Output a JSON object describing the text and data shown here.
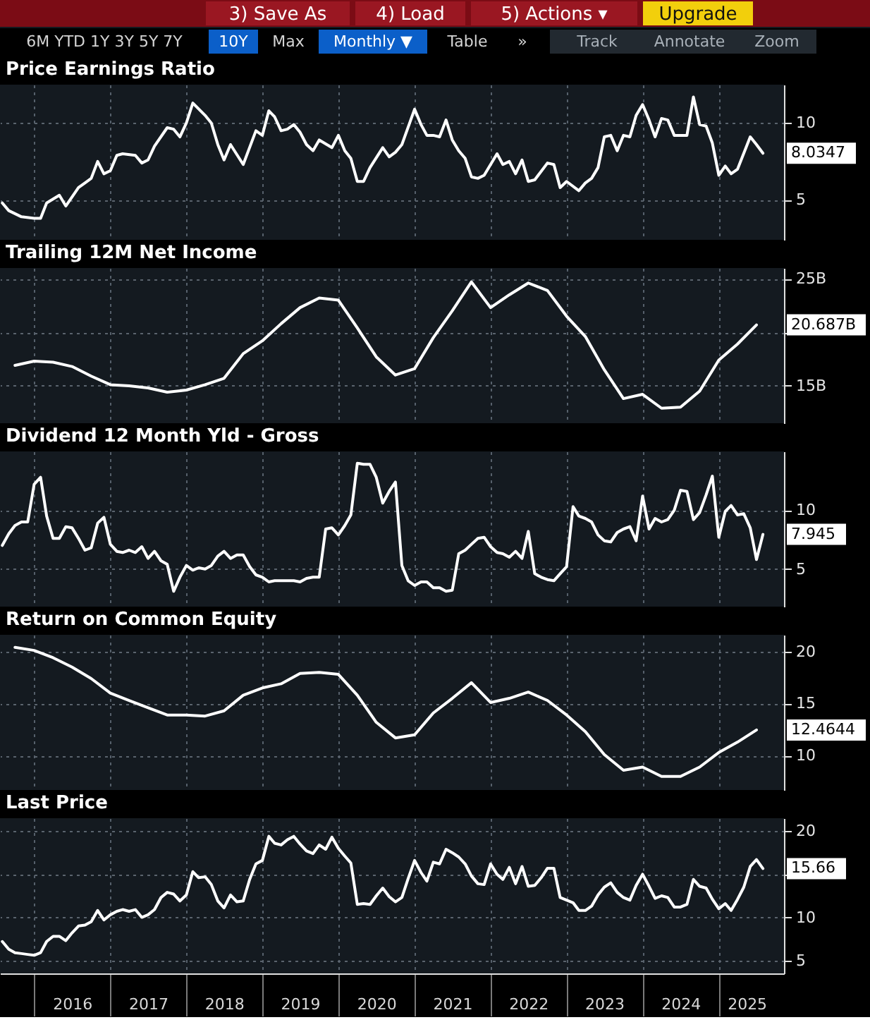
{
  "chart_data": [
    {
      "type": "other",
      "annotations": [
        "3) Save As",
        "4) Load",
        "5) Actions ▾",
        "Upgrade",
        "6M YTD 1Y 3Y 5Y 7Y",
        "10Y",
        "Max",
        "Monthly ▼",
        "Table",
        "»",
        "Track",
        "Annotate",
        "Zoom"
      ]
    },
    {
      "type": "line",
      "title": "Price Earnings Ratio",
      "tick_labels": "y",
      "grid": true,
      "x": [
        "2015-08",
        "2015-09",
        "2015-11",
        "2016-01",
        "2016-02",
        "2016-03",
        "2016-05",
        "2016-06",
        "2016-08",
        "2016-09",
        "2016-10",
        "2016-11",
        "2016-12",
        "2017-01",
        "2017-02",
        "2017-03",
        "2017-05",
        "2017-06",
        "2017-07",
        "2017-08",
        "2017-10",
        "2017-11",
        "2017-12",
        "2018-01",
        "2018-02",
        "2018-04",
        "2018-05",
        "2018-06",
        "2018-07",
        "2018-08",
        "2018-10",
        "2018-12",
        "2019-01",
        "2019-02",
        "2019-03",
        "2019-04",
        "2019-05",
        "2019-06",
        "2019-07",
        "2019-08",
        "2019-09",
        "2019-10",
        "2019-12",
        "2020-01",
        "2020-02",
        "2020-03",
        "2020-04",
        "2020-05",
        "2020-06",
        "2020-08",
        "2020-09",
        "2020-10",
        "2020-11",
        "2021-01",
        "2021-02",
        "2021-03",
        "2021-04",
        "2021-05",
        "2021-06",
        "2021-07",
        "2021-08",
        "2021-09",
        "2021-10",
        "2021-11",
        "2021-12",
        "2022-02",
        "2022-03",
        "2022-04",
        "2022-05",
        "2022-06",
        "2022-07",
        "2022-08",
        "2022-10",
        "2022-11",
        "2022-12",
        "2023-01",
        "2023-03",
        "2023-04",
        "2023-05",
        "2023-06",
        "2023-07",
        "2023-08",
        "2023-09",
        "2023-10",
        "2023-11",
        "2023-12",
        "2024-01",
        "2024-02",
        "2024-03",
        "2024-04",
        "2024-05",
        "2024-06",
        "2024-07",
        "2024-08",
        "2024-09",
        "2024-10",
        "2024-11",
        "2024-12",
        "2025-01",
        "2025-02",
        "2025-03",
        "2025-04",
        "2025-06",
        "2025-07",
        "2025-08"
      ],
      "series": [
        {
          "color": "#ffffff",
          "values": [
            4.8,
            4.3,
            3.9,
            3.8,
            3.8,
            4.8,
            5.3,
            4.6,
            5.8,
            6.1,
            6.4,
            7.5,
            6.7,
            6.9,
            7.9,
            8.0,
            7.9,
            7.4,
            7.6,
            8.5,
            9.7,
            9.6,
            9.1,
            10.0,
            11.3,
            10.5,
            10.0,
            8.6,
            7.6,
            8.6,
            7.3,
            9.5,
            9.2,
            10.8,
            10.4,
            9.5,
            9.6,
            9.9,
            9.4,
            8.6,
            8.2,
            8.9,
            8.4,
            9.2,
            8.2,
            7.7,
            6.2,
            6.2,
            7.1,
            8.4,
            7.8,
            8.1,
            8.6,
            10.9,
            9.9,
            9.2,
            9.2,
            9.1,
            10.2,
            8.9,
            8.2,
            7.7,
            6.5,
            6.4,
            6.6,
            8.0,
            7.3,
            7.5,
            6.7,
            7.6,
            6.2,
            6.3,
            7.4,
            7.3,
            5.8,
            6.2,
            5.6,
            6.1,
            6.4,
            7.1,
            9.1,
            9.2,
            8.2,
            9.2,
            9.1,
            10.5,
            11.2,
            10.2,
            9.1,
            10.3,
            10.2,
            9.2,
            9.2,
            9.2,
            11.7,
            9.9,
            9.8,
            8.7,
            6.6,
            7.2,
            6.7,
            7.0,
            9.1,
            8.6,
            8.0347
          ]
        }
      ],
      "xlim": [
        "2015-07-21",
        "2025-11-10"
      ],
      "xticks": [
        {
          "value": "2016-01",
          "label": null
        },
        {
          "value": "2017-01",
          "label": null
        },
        {
          "value": "2018-01",
          "label": null
        },
        {
          "value": "2019-01",
          "label": null
        },
        {
          "value": "2020-01",
          "label": null
        },
        {
          "value": "2021-01",
          "label": null
        },
        {
          "value": "2022-01",
          "label": null
        },
        {
          "value": "2023-01",
          "label": null
        },
        {
          "value": "2024-01",
          "label": null
        },
        {
          "value": "2025-01",
          "label": null
        }
      ],
      "ylim": [
        2.4,
        12.5
      ],
      "yticks": [
        5,
        10
      ],
      "annotations": [
        {
          "text": "8.0347",
          "x": "2025-08",
          "y": 8.0347
        }
      ]
    },
    {
      "type": "line",
      "title": "Trailing 12M Net Income",
      "tick_labels": "y",
      "grid": true,
      "x": [
        "2015-10",
        "2016-01",
        "2016-04",
        "2016-07",
        "2016-10",
        "2017-01",
        "2017-04",
        "2017-07",
        "2017-10",
        "2018-01",
        "2018-04",
        "2018-07",
        "2018-10",
        "2019-01",
        "2019-04",
        "2019-07",
        "2019-10",
        "2020-01",
        "2020-04",
        "2020-07",
        "2020-10",
        "2021-01",
        "2021-04",
        "2021-07",
        "2021-10",
        "2022-01",
        "2022-04",
        "2022-07",
        "2022-10",
        "2023-01",
        "2023-04",
        "2023-07",
        "2023-10",
        "2024-01",
        "2024-04",
        "2024-07",
        "2024-10",
        "2025-01",
        "2025-04",
        "2025-07"
      ],
      "series": [
        {
          "color": "#ffffff",
          "values": [
            16.9,
            17.3,
            17.2,
            16.8,
            15.9,
            15.1,
            15.0,
            14.8,
            14.4,
            14.6,
            15.1,
            15.7,
            18.0,
            19.2,
            20.8,
            22.3,
            23.2,
            23.0,
            20.4,
            17.7,
            16.0,
            16.6,
            19.5,
            22.0,
            24.7,
            22.3,
            23.5,
            24.6,
            23.9,
            21.5,
            19.6,
            16.5,
            13.8,
            14.2,
            12.9,
            13.0,
            14.5,
            17.4,
            18.9,
            20.687
          ]
        }
      ],
      "xlim": [
        "2015-07-21",
        "2025-11-10"
      ],
      "xticks": [
        {
          "value": "2016-01",
          "label": null
        },
        {
          "value": "2017-01",
          "label": null
        },
        {
          "value": "2018-01",
          "label": null
        },
        {
          "value": "2019-01",
          "label": null
        },
        {
          "value": "2020-01",
          "label": null
        },
        {
          "value": "2021-01",
          "label": null
        },
        {
          "value": "2022-01",
          "label": null
        },
        {
          "value": "2023-01",
          "label": null
        },
        {
          "value": "2024-01",
          "label": null
        },
        {
          "value": "2025-01",
          "label": null
        }
      ],
      "ylim": [
        11.5,
        26.0
      ],
      "yticks": [
        {
          "value": 15,
          "label": "15B"
        },
        {
          "value": 20,
          "label": null
        },
        {
          "value": 25,
          "label": "25B"
        }
      ],
      "annotations": [
        {
          "text": "20.687B",
          "x": "2025-07",
          "y": 20.687
        }
      ]
    },
    {
      "type": "line",
      "title": "Dividend 12 Month Yld - Gross",
      "tick_labels": "y",
      "grid": true,
      "x": [
        "2015-08",
        "2015-09",
        "2015-10",
        "2015-11",
        "2015-12",
        "2016-01",
        "2016-02",
        "2016-03",
        "2016-04",
        "2016-05",
        "2016-06",
        "2016-07",
        "2016-08",
        "2016-09",
        "2016-10",
        "2016-11",
        "2016-12",
        "2017-01",
        "2017-02",
        "2017-03",
        "2017-04",
        "2017-05",
        "2017-06",
        "2017-07",
        "2017-08",
        "2017-09",
        "2017-10",
        "2017-11",
        "2017-12",
        "2018-01",
        "2018-02",
        "2018-03",
        "2018-04",
        "2018-05",
        "2018-06",
        "2018-07",
        "2018-08",
        "2018-09",
        "2018-10",
        "2018-11",
        "2018-12",
        "2019-01",
        "2019-02",
        "2019-03",
        "2019-04",
        "2019-05",
        "2019-06",
        "2019-07",
        "2019-08",
        "2019-09",
        "2019-10",
        "2019-11",
        "2019-12",
        "2020-01",
        "2020-02",
        "2020-03",
        "2020-04",
        "2020-05",
        "2020-06",
        "2020-07",
        "2020-08",
        "2020-09",
        "2020-10",
        "2020-11",
        "2020-12",
        "2021-01",
        "2021-02",
        "2021-03",
        "2021-04",
        "2021-05",
        "2021-06",
        "2021-07",
        "2021-08",
        "2021-09",
        "2021-10",
        "2021-11",
        "2021-12",
        "2022-01",
        "2022-02",
        "2022-03",
        "2022-04",
        "2022-05",
        "2022-06",
        "2022-07",
        "2022-08",
        "2022-09",
        "2022-10",
        "2022-11",
        "2022-12",
        "2023-01",
        "2023-02",
        "2023-03",
        "2023-04",
        "2023-05",
        "2023-06",
        "2023-07",
        "2023-08",
        "2023-09",
        "2023-10",
        "2023-11",
        "2023-12",
        "2024-01",
        "2024-02",
        "2024-03",
        "2024-04",
        "2024-05",
        "2024-06",
        "2024-07",
        "2024-08",
        "2024-09",
        "2024-10",
        "2024-11",
        "2024-12",
        "2025-01",
        "2025-02",
        "2025-03",
        "2025-04",
        "2025-05",
        "2025-06",
        "2025-07",
        "2025-08"
      ],
      "series": [
        {
          "color": "#ffffff",
          "values": [
            7.0,
            8.0,
            8.7,
            9.0,
            9.0,
            12.2,
            12.8,
            9.5,
            7.6,
            7.6,
            8.6,
            8.5,
            7.6,
            6.6,
            6.8,
            8.9,
            9.4,
            7.1,
            6.5,
            6.4,
            6.6,
            6.4,
            6.9,
            5.9,
            6.5,
            5.7,
            5.4,
            3.1,
            4.3,
            5.3,
            4.9,
            5.1,
            5.0,
            5.3,
            6.1,
            6.5,
            5.9,
            6.2,
            6.2,
            5.2,
            4.5,
            4.3,
            3.9,
            4.0,
            4.0,
            4.0,
            4.0,
            3.9,
            4.2,
            4.3,
            4.3,
            8.4,
            8.5,
            7.9,
            8.7,
            9.6,
            14.0,
            13.9,
            13.9,
            12.8,
            10.6,
            11.6,
            12.4,
            5.3,
            4.0,
            3.6,
            3.9,
            3.9,
            3.4,
            3.4,
            3.1,
            3.2,
            6.3,
            6.6,
            7.1,
            7.6,
            7.7,
            6.9,
            6.4,
            6.3,
            6.0,
            6.5,
            5.9,
            8.2,
            4.6,
            4.3,
            4.1,
            4.0,
            4.6,
            5.2,
            10.3,
            9.5,
            9.3,
            9.0,
            7.9,
            7.4,
            7.3,
            8.1,
            8.4,
            8.6,
            7.4,
            11.2,
            8.4,
            9.3,
            9.0,
            9.2,
            10.0,
            11.7,
            11.6,
            9.2,
            9.8,
            11.3,
            12.9,
            7.7,
            9.9,
            10.4,
            9.6,
            9.7,
            8.5,
            5.8,
            7.945
          ]
        }
      ],
      "xlim": [
        "2015-07-21",
        "2025-11-10"
      ],
      "xticks": [
        {
          "value": "2016-01",
          "label": null
        },
        {
          "value": "2017-01",
          "label": null
        },
        {
          "value": "2018-01",
          "label": null
        },
        {
          "value": "2019-01",
          "label": null
        },
        {
          "value": "2020-01",
          "label": null
        },
        {
          "value": "2021-01",
          "label": null
        },
        {
          "value": "2022-01",
          "label": null
        },
        {
          "value": "2023-01",
          "label": null
        },
        {
          "value": "2024-01",
          "label": null
        },
        {
          "value": "2025-01",
          "label": null
        }
      ],
      "ylim": [
        1.8,
        15.0
      ],
      "yticks": [
        5,
        10
      ],
      "annotations": [
        {
          "text": "7.945",
          "x": "2025-08",
          "y": 7.945
        }
      ]
    },
    {
      "type": "line",
      "title": "Return on Common Equity",
      "tick_labels": "y",
      "grid": true,
      "x": [
        "2015-10",
        "2016-01",
        "2016-04",
        "2016-07",
        "2016-10",
        "2017-01",
        "2017-04",
        "2017-07",
        "2017-10",
        "2018-01",
        "2018-04",
        "2018-07",
        "2018-10",
        "2019-01",
        "2019-04",
        "2019-07",
        "2019-10",
        "2020-01",
        "2020-04",
        "2020-07",
        "2020-10",
        "2021-01",
        "2021-04",
        "2021-07",
        "2021-10",
        "2022-01",
        "2022-04",
        "2022-07",
        "2022-10",
        "2023-01",
        "2023-04",
        "2023-07",
        "2023-10",
        "2024-01",
        "2024-04",
        "2024-07",
        "2024-10",
        "2025-01",
        "2025-04",
        "2025-07"
      ],
      "series": [
        {
          "color": "#ffffff",
          "values": [
            20.4,
            20.1,
            19.4,
            18.5,
            17.4,
            16.0,
            15.3,
            14.6,
            13.9,
            13.9,
            13.8,
            14.3,
            15.8,
            16.5,
            16.9,
            17.9,
            18.0,
            17.8,
            15.8,
            13.2,
            11.7,
            12.0,
            14.1,
            15.5,
            17.0,
            15.1,
            15.5,
            16.1,
            15.3,
            13.9,
            12.3,
            10.1,
            8.6,
            8.9,
            8.0,
            8.0,
            8.9,
            10.3,
            11.3,
            12.4644
          ]
        }
      ],
      "xlim": [
        "2015-07-21",
        "2025-11-10"
      ],
      "xticks": [
        {
          "value": "2016-01",
          "label": null
        },
        {
          "value": "2017-01",
          "label": null
        },
        {
          "value": "2018-01",
          "label": null
        },
        {
          "value": "2019-01",
          "label": null
        },
        {
          "value": "2020-01",
          "label": null
        },
        {
          "value": "2021-01",
          "label": null
        },
        {
          "value": "2022-01",
          "label": null
        },
        {
          "value": "2023-01",
          "label": null
        },
        {
          "value": "2024-01",
          "label": null
        },
        {
          "value": "2025-01",
          "label": null
        }
      ],
      "ylim": [
        6.7,
        21.6
      ],
      "yticks": [
        10,
        15,
        20
      ],
      "annotations": [
        {
          "text": "12.4644",
          "x": "2025-07",
          "y": 12.4644
        }
      ]
    },
    {
      "type": "line",
      "title": "Last Price",
      "grid": true,
      "x": [
        "2015-08",
        "2015-09",
        "2015-10",
        "2015-11",
        "2015-12",
        "2016-01",
        "2016-02",
        "2016-03",
        "2016-04",
        "2016-05",
        "2016-06",
        "2016-07",
        "2016-08",
        "2016-09",
        "2016-10",
        "2016-11",
        "2016-12",
        "2017-01",
        "2017-02",
        "2017-03",
        "2017-04",
        "2017-05",
        "2017-06",
        "2017-07",
        "2017-08",
        "2017-09",
        "2017-10",
        "2017-11",
        "2017-12",
        "2018-01",
        "2018-02",
        "2018-03",
        "2018-04",
        "2018-05",
        "2018-06",
        "2018-07",
        "2018-08",
        "2018-09",
        "2018-10",
        "2018-11",
        "2018-12",
        "2019-01",
        "2019-02",
        "2019-03",
        "2019-04",
        "2019-05",
        "2019-06",
        "2019-07",
        "2019-08",
        "2019-09",
        "2019-10",
        "2019-11",
        "2019-12",
        "2020-01",
        "2020-02",
        "2020-03",
        "2020-04",
        "2020-05",
        "2020-06",
        "2020-07",
        "2020-08",
        "2020-09",
        "2020-10",
        "2020-11",
        "2020-12",
        "2021-01",
        "2021-02",
        "2021-03",
        "2021-04",
        "2021-05",
        "2021-06",
        "2021-07",
        "2021-08",
        "2021-09",
        "2021-10",
        "2021-11",
        "2021-12",
        "2022-01",
        "2022-02",
        "2022-03",
        "2022-04",
        "2022-05",
        "2022-06",
        "2022-07",
        "2022-08",
        "2022-09",
        "2022-10",
        "2022-11",
        "2022-12",
        "2023-01",
        "2023-02",
        "2023-03",
        "2023-04",
        "2023-05",
        "2023-06",
        "2023-07",
        "2023-08",
        "2023-09",
        "2023-10",
        "2023-11",
        "2023-12",
        "2024-01",
        "2024-02",
        "2024-03",
        "2024-04",
        "2024-05",
        "2024-06",
        "2024-07",
        "2024-08",
        "2024-09",
        "2024-10",
        "2024-11",
        "2024-12",
        "2025-01",
        "2025-02",
        "2025-03",
        "2025-04",
        "2025-05",
        "2025-06",
        "2025-07",
        "2025-08"
      ],
      "series": [
        {
          "color": "#ffffff",
          "values": [
            7.2,
            6.3,
            5.9,
            5.8,
            5.7,
            5.6,
            5.9,
            7.2,
            7.8,
            7.8,
            7.3,
            8.2,
            9.0,
            9.1,
            9.5,
            10.8,
            9.7,
            10.3,
            10.7,
            10.9,
            10.7,
            10.9,
            10.0,
            10.3,
            10.9,
            12.3,
            12.9,
            12.7,
            11.9,
            12.6,
            15.3,
            14.6,
            14.7,
            13.8,
            11.9,
            11.1,
            12.6,
            11.8,
            11.9,
            14.4,
            16.2,
            16.6,
            19.4,
            18.6,
            18.4,
            19.0,
            19.4,
            18.5,
            17.7,
            17.4,
            18.4,
            17.9,
            19.3,
            18.0,
            17.1,
            16.3,
            11.5,
            11.6,
            11.5,
            12.5,
            13.4,
            12.4,
            11.8,
            12.3,
            14.5,
            16.6,
            15.2,
            14.2,
            16.4,
            16.2,
            17.9,
            17.5,
            17.0,
            16.2,
            14.8,
            13.9,
            13.8,
            16.2,
            15.0,
            14.4,
            15.8,
            13.9,
            15.9,
            13.6,
            13.7,
            14.6,
            15.7,
            15.7,
            12.3,
            12.0,
            11.7,
            10.8,
            10.8,
            11.3,
            12.6,
            13.5,
            14.0,
            12.9,
            12.3,
            12.0,
            13.7,
            15.0,
            13.6,
            12.2,
            12.5,
            12.3,
            11.2,
            11.2,
            11.5,
            14.4,
            13.6,
            13.4,
            12.1,
            11.0,
            11.6,
            10.8,
            12.1,
            13.5,
            15.9,
            16.7,
            15.66
          ]
        }
      ],
      "xlim": [
        "2015-07-21",
        "2025-11-10"
      ],
      "xticks": [
        {
          "value": "2016-01",
          "label": null
        },
        {
          "value": "2016-07",
          "label": "2016"
        },
        {
          "value": "2017-01",
          "label": null
        },
        {
          "value": "2017-07",
          "label": "2017"
        },
        {
          "value": "2018-01",
          "label": null
        },
        {
          "value": "2018-07",
          "label": "2018"
        },
        {
          "value": "2019-01",
          "label": null
        },
        {
          "value": "2019-07",
          "label": "2019"
        },
        {
          "value": "2020-01",
          "label": null
        },
        {
          "value": "2020-07",
          "label": "2020"
        },
        {
          "value": "2021-01",
          "label": null
        },
        {
          "value": "2021-07",
          "label": "2021"
        },
        {
          "value": "2022-01",
          "label": null
        },
        {
          "value": "2022-07",
          "label": "2022"
        },
        {
          "value": "2023-01",
          "label": null
        },
        {
          "value": "2023-07",
          "label": "2023"
        },
        {
          "value": "2024-01",
          "label": null
        },
        {
          "value": "2024-07",
          "label": "2024"
        },
        {
          "value": "2025-01",
          "label": null
        },
        {
          "value": "2025-05-15",
          "label": "2025"
        }
      ],
      "ylim": [
        3.5,
        21.5
      ],
      "yticks": [
        5,
        10,
        {
          "value": 15,
          "label": null
        },
        20
      ],
      "annotations": [
        {
          "text": "15.66",
          "x": "2025-08",
          "y": 15.66
        }
      ]
    }
  ]
}
